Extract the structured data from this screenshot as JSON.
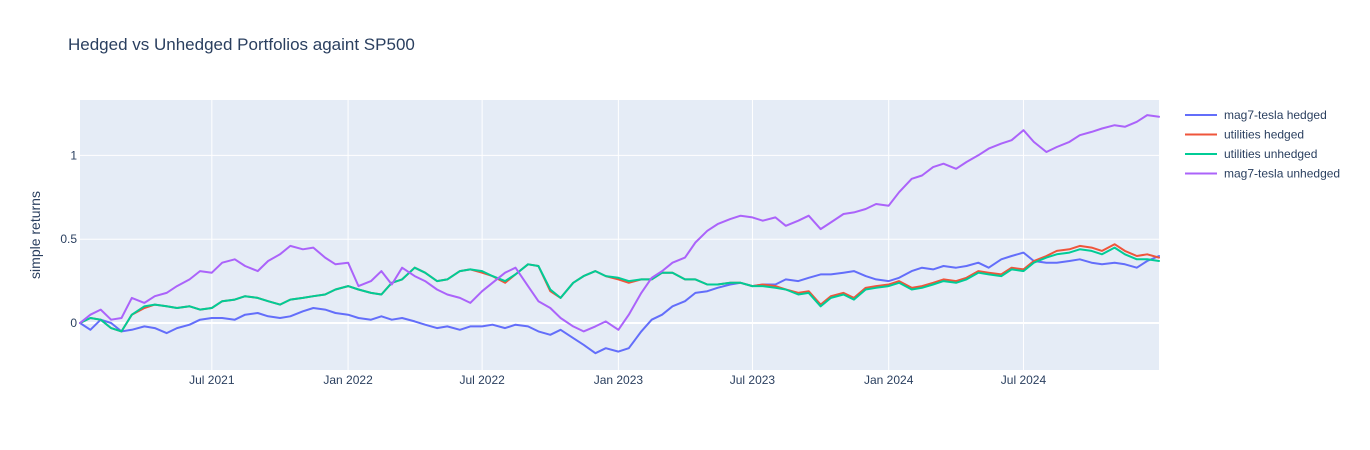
{
  "chart_data": {
    "type": "line",
    "title": "Hedged vs Unhedged Portfolios againt SP500",
    "ylabel": "simple returns",
    "xlabel": "",
    "x_range": [
      "2021-01-04",
      "2024-12-31"
    ],
    "ylim": [
      -0.28,
      1.33
    ],
    "x_ticks": [
      {
        "date": "2021-07-01",
        "label": "Jul 2021"
      },
      {
        "date": "2022-01-01",
        "label": "Jan 2022"
      },
      {
        "date": "2022-07-01",
        "label": "Jul 2022"
      },
      {
        "date": "2023-01-01",
        "label": "Jan 2023"
      },
      {
        "date": "2023-07-01",
        "label": "Jul 2023"
      },
      {
        "date": "2024-01-01",
        "label": "Jan 2024"
      },
      {
        "date": "2024-07-01",
        "label": "Jul 2024"
      }
    ],
    "y_ticks": [
      {
        "value": 0,
        "label": "0"
      },
      {
        "value": 0.5,
        "label": "0.5"
      },
      {
        "value": 1,
        "label": "1"
      }
    ],
    "grid": true,
    "legend_position": "right",
    "series": [
      {
        "name": "mag7-tesla hedged",
        "color": "#636efa",
        "x": [
          "2021-01-04",
          "2021-01-18",
          "2021-02-01",
          "2021-02-15",
          "2021-03-01",
          "2021-03-15",
          "2021-04-01",
          "2021-04-15",
          "2021-05-01",
          "2021-05-15",
          "2021-06-01",
          "2021-06-15",
          "2021-07-01",
          "2021-07-15",
          "2021-08-01",
          "2021-08-15",
          "2021-09-01",
          "2021-09-15",
          "2021-10-01",
          "2021-10-15",
          "2021-11-01",
          "2021-11-15",
          "2021-12-01",
          "2021-12-15",
          "2022-01-01",
          "2022-01-15",
          "2022-02-01",
          "2022-02-15",
          "2022-03-01",
          "2022-03-15",
          "2022-04-01",
          "2022-04-15",
          "2022-05-01",
          "2022-05-15",
          "2022-06-01",
          "2022-06-15",
          "2022-07-01",
          "2022-07-15",
          "2022-08-01",
          "2022-08-15",
          "2022-09-01",
          "2022-09-15",
          "2022-10-01",
          "2022-10-15",
          "2022-11-01",
          "2022-11-15",
          "2022-12-01",
          "2022-12-15",
          "2023-01-01",
          "2023-01-15",
          "2023-02-01",
          "2023-02-15",
          "2023-03-01",
          "2023-03-15",
          "2023-04-01",
          "2023-04-15",
          "2023-05-01",
          "2023-05-15",
          "2023-06-01",
          "2023-06-15",
          "2023-07-01",
          "2023-07-15",
          "2023-08-01",
          "2023-08-15",
          "2023-09-01",
          "2023-09-15",
          "2023-10-01",
          "2023-10-15",
          "2023-11-01",
          "2023-11-15",
          "2023-12-01",
          "2023-12-15",
          "2024-01-01",
          "2024-01-15",
          "2024-02-01",
          "2024-02-15",
          "2024-03-01",
          "2024-03-15",
          "2024-04-01",
          "2024-04-15",
          "2024-05-01",
          "2024-05-15",
          "2024-06-01",
          "2024-06-15",
          "2024-07-01",
          "2024-07-15",
          "2024-08-01",
          "2024-08-15",
          "2024-09-01",
          "2024-09-15",
          "2024-10-01",
          "2024-10-15",
          "2024-11-01",
          "2024-11-15",
          "2024-12-01",
          "2024-12-15",
          "2024-12-31"
        ],
        "y": [
          0.0,
          -0.04,
          0.02,
          0.0,
          -0.05,
          -0.04,
          -0.02,
          -0.03,
          -0.06,
          -0.03,
          -0.01,
          0.02,
          0.03,
          0.03,
          0.02,
          0.05,
          0.06,
          0.04,
          0.03,
          0.04,
          0.07,
          0.09,
          0.08,
          0.06,
          0.05,
          0.03,
          0.02,
          0.04,
          0.02,
          0.03,
          0.01,
          -0.01,
          -0.03,
          -0.02,
          -0.04,
          -0.02,
          -0.02,
          -0.01,
          -0.03,
          -0.01,
          -0.02,
          -0.05,
          -0.07,
          -0.04,
          -0.09,
          -0.13,
          -0.18,
          -0.15,
          -0.17,
          -0.15,
          -0.05,
          0.02,
          0.05,
          0.1,
          0.13,
          0.18,
          0.19,
          0.21,
          0.23,
          0.24,
          0.22,
          0.23,
          0.23,
          0.26,
          0.25,
          0.27,
          0.29,
          0.29,
          0.3,
          0.31,
          0.28,
          0.26,
          0.25,
          0.27,
          0.31,
          0.33,
          0.32,
          0.34,
          0.33,
          0.34,
          0.36,
          0.33,
          0.38,
          0.4,
          0.42,
          0.37,
          0.36,
          0.36,
          0.37,
          0.38,
          0.36,
          0.35,
          0.36,
          0.35,
          0.33,
          0.37,
          0.4
        ]
      },
      {
        "name": "utilities hedged",
        "color": "#ef553b",
        "x": [
          "2021-01-04",
          "2021-01-18",
          "2021-02-01",
          "2021-02-15",
          "2021-03-01",
          "2021-03-15",
          "2021-04-01",
          "2021-04-15",
          "2021-05-01",
          "2021-05-15",
          "2021-06-01",
          "2021-06-15",
          "2021-07-01",
          "2021-07-15",
          "2021-08-01",
          "2021-08-15",
          "2021-09-01",
          "2021-09-15",
          "2021-10-01",
          "2021-10-15",
          "2021-11-01",
          "2021-11-15",
          "2021-12-01",
          "2021-12-15",
          "2022-01-01",
          "2022-01-15",
          "2022-02-01",
          "2022-02-15",
          "2022-03-01",
          "2022-03-15",
          "2022-04-01",
          "2022-04-15",
          "2022-05-01",
          "2022-05-15",
          "2022-06-01",
          "2022-06-15",
          "2022-07-01",
          "2022-07-15",
          "2022-08-01",
          "2022-08-15",
          "2022-09-01",
          "2022-09-15",
          "2022-10-01",
          "2022-10-15",
          "2022-11-01",
          "2022-11-15",
          "2022-12-01",
          "2022-12-15",
          "2023-01-01",
          "2023-01-15",
          "2023-02-01",
          "2023-02-15",
          "2023-03-01",
          "2023-03-15",
          "2023-04-01",
          "2023-04-15",
          "2023-05-01",
          "2023-05-15",
          "2023-06-01",
          "2023-06-15",
          "2023-07-01",
          "2023-07-15",
          "2023-08-01",
          "2023-08-15",
          "2023-09-01",
          "2023-09-15",
          "2023-10-01",
          "2023-10-15",
          "2023-11-01",
          "2023-11-15",
          "2023-12-01",
          "2023-12-15",
          "2024-01-01",
          "2024-01-15",
          "2024-02-01",
          "2024-02-15",
          "2024-03-01",
          "2024-03-15",
          "2024-04-01",
          "2024-04-15",
          "2024-05-01",
          "2024-05-15",
          "2024-06-01",
          "2024-06-15",
          "2024-07-01",
          "2024-07-15",
          "2024-08-01",
          "2024-08-15",
          "2024-09-01",
          "2024-09-15",
          "2024-10-01",
          "2024-10-15",
          "2024-11-01",
          "2024-11-15",
          "2024-12-01",
          "2024-12-15",
          "2024-12-31"
        ],
        "y": [
          0.0,
          0.03,
          0.02,
          -0.03,
          -0.05,
          0.05,
          0.09,
          0.11,
          0.1,
          0.09,
          0.1,
          0.08,
          0.09,
          0.13,
          0.14,
          0.16,
          0.15,
          0.13,
          0.11,
          0.14,
          0.15,
          0.16,
          0.17,
          0.2,
          0.22,
          0.2,
          0.18,
          0.17,
          0.24,
          0.26,
          0.33,
          0.3,
          0.25,
          0.26,
          0.31,
          0.32,
          0.3,
          0.28,
          0.24,
          0.29,
          0.35,
          0.34,
          0.19,
          0.15,
          0.24,
          0.28,
          0.31,
          0.28,
          0.26,
          0.24,
          0.26,
          0.26,
          0.3,
          0.3,
          0.26,
          0.26,
          0.23,
          0.23,
          0.24,
          0.24,
          0.22,
          0.23,
          0.22,
          0.2,
          0.18,
          0.19,
          0.11,
          0.16,
          0.18,
          0.15,
          0.21,
          0.22,
          0.23,
          0.25,
          0.21,
          0.22,
          0.24,
          0.26,
          0.25,
          0.27,
          0.31,
          0.3,
          0.29,
          0.33,
          0.32,
          0.37,
          0.4,
          0.43,
          0.44,
          0.46,
          0.45,
          0.43,
          0.47,
          0.43,
          0.4,
          0.41,
          0.39
        ]
      },
      {
        "name": "utilities unhedged",
        "color": "#00cc96",
        "x": [
          "2021-01-04",
          "2021-01-18",
          "2021-02-01",
          "2021-02-15",
          "2021-03-01",
          "2021-03-15",
          "2021-04-01",
          "2021-04-15",
          "2021-05-01",
          "2021-05-15",
          "2021-06-01",
          "2021-06-15",
          "2021-07-01",
          "2021-07-15",
          "2021-08-01",
          "2021-08-15",
          "2021-09-01",
          "2021-09-15",
          "2021-10-01",
          "2021-10-15",
          "2021-11-01",
          "2021-11-15",
          "2021-12-01",
          "2021-12-15",
          "2022-01-01",
          "2022-01-15",
          "2022-02-01",
          "2022-02-15",
          "2022-03-01",
          "2022-03-15",
          "2022-04-01",
          "2022-04-15",
          "2022-05-01",
          "2022-05-15",
          "2022-06-01",
          "2022-06-15",
          "2022-07-01",
          "2022-07-15",
          "2022-08-01",
          "2022-08-15",
          "2022-09-01",
          "2022-09-15",
          "2022-10-01",
          "2022-10-15",
          "2022-11-01",
          "2022-11-15",
          "2022-12-01",
          "2022-12-15",
          "2023-01-01",
          "2023-01-15",
          "2023-02-01",
          "2023-02-15",
          "2023-03-01",
          "2023-03-15",
          "2023-04-01",
          "2023-04-15",
          "2023-05-01",
          "2023-05-15",
          "2023-06-01",
          "2023-06-15",
          "2023-07-01",
          "2023-07-15",
          "2023-08-01",
          "2023-08-15",
          "2023-09-01",
          "2023-09-15",
          "2023-10-01",
          "2023-10-15",
          "2023-11-01",
          "2023-11-15",
          "2023-12-01",
          "2023-12-15",
          "2024-01-01",
          "2024-01-15",
          "2024-02-01",
          "2024-02-15",
          "2024-03-01",
          "2024-03-15",
          "2024-04-01",
          "2024-04-15",
          "2024-05-01",
          "2024-05-15",
          "2024-06-01",
          "2024-06-15",
          "2024-07-01",
          "2024-07-15",
          "2024-08-01",
          "2024-08-15",
          "2024-09-01",
          "2024-09-15",
          "2024-10-01",
          "2024-10-15",
          "2024-11-01",
          "2024-11-15",
          "2024-12-01",
          "2024-12-15",
          "2024-12-31"
        ],
        "y": [
          0.0,
          0.03,
          0.02,
          -0.03,
          -0.05,
          0.05,
          0.1,
          0.11,
          0.1,
          0.09,
          0.1,
          0.08,
          0.09,
          0.13,
          0.14,
          0.16,
          0.15,
          0.13,
          0.11,
          0.14,
          0.15,
          0.16,
          0.17,
          0.2,
          0.22,
          0.2,
          0.18,
          0.17,
          0.24,
          0.26,
          0.33,
          0.3,
          0.25,
          0.26,
          0.31,
          0.32,
          0.31,
          0.28,
          0.25,
          0.29,
          0.35,
          0.34,
          0.2,
          0.15,
          0.24,
          0.28,
          0.31,
          0.28,
          0.27,
          0.25,
          0.26,
          0.26,
          0.3,
          0.3,
          0.26,
          0.26,
          0.23,
          0.23,
          0.24,
          0.24,
          0.22,
          0.22,
          0.21,
          0.2,
          0.17,
          0.18,
          0.1,
          0.15,
          0.17,
          0.14,
          0.2,
          0.21,
          0.22,
          0.24,
          0.2,
          0.21,
          0.23,
          0.25,
          0.24,
          0.26,
          0.3,
          0.29,
          0.28,
          0.32,
          0.31,
          0.36,
          0.39,
          0.41,
          0.42,
          0.44,
          0.43,
          0.41,
          0.45,
          0.41,
          0.38,
          0.38,
          0.37
        ]
      },
      {
        "name": "mag7-tesla unhedged",
        "color": "#ab63fa",
        "x": [
          "2021-01-04",
          "2021-01-18",
          "2021-02-01",
          "2021-02-15",
          "2021-03-01",
          "2021-03-15",
          "2021-04-01",
          "2021-04-15",
          "2021-05-01",
          "2021-05-15",
          "2021-06-01",
          "2021-06-15",
          "2021-07-01",
          "2021-07-15",
          "2021-08-01",
          "2021-08-15",
          "2021-09-01",
          "2021-09-15",
          "2021-10-01",
          "2021-10-15",
          "2021-11-01",
          "2021-11-15",
          "2021-12-01",
          "2021-12-15",
          "2022-01-01",
          "2022-01-15",
          "2022-02-01",
          "2022-02-15",
          "2022-03-01",
          "2022-03-15",
          "2022-04-01",
          "2022-04-15",
          "2022-05-01",
          "2022-05-15",
          "2022-06-01",
          "2022-06-15",
          "2022-07-01",
          "2022-07-15",
          "2022-08-01",
          "2022-08-15",
          "2022-09-01",
          "2022-09-15",
          "2022-10-01",
          "2022-10-15",
          "2022-11-01",
          "2022-11-15",
          "2022-12-01",
          "2022-12-15",
          "2023-01-01",
          "2023-01-15",
          "2023-02-01",
          "2023-02-15",
          "2023-03-01",
          "2023-03-15",
          "2023-04-01",
          "2023-04-15",
          "2023-05-01",
          "2023-05-15",
          "2023-06-01",
          "2023-06-15",
          "2023-07-01",
          "2023-07-15",
          "2023-08-01",
          "2023-08-15",
          "2023-09-01",
          "2023-09-15",
          "2023-10-01",
          "2023-10-15",
          "2023-11-01",
          "2023-11-15",
          "2023-12-01",
          "2023-12-15",
          "2024-01-01",
          "2024-01-15",
          "2024-02-01",
          "2024-02-15",
          "2024-03-01",
          "2024-03-15",
          "2024-04-01",
          "2024-04-15",
          "2024-05-01",
          "2024-05-15",
          "2024-06-01",
          "2024-06-15",
          "2024-07-01",
          "2024-07-15",
          "2024-08-01",
          "2024-08-15",
          "2024-09-01",
          "2024-09-15",
          "2024-10-01",
          "2024-10-15",
          "2024-11-01",
          "2024-11-15",
          "2024-12-01",
          "2024-12-15",
          "2024-12-31"
        ],
        "y": [
          0.0,
          0.05,
          0.08,
          0.02,
          0.03,
          0.15,
          0.12,
          0.16,
          0.18,
          0.22,
          0.26,
          0.31,
          0.3,
          0.36,
          0.38,
          0.34,
          0.31,
          0.37,
          0.41,
          0.46,
          0.44,
          0.45,
          0.39,
          0.35,
          0.36,
          0.22,
          0.25,
          0.31,
          0.23,
          0.33,
          0.28,
          0.25,
          0.2,
          0.17,
          0.15,
          0.12,
          0.19,
          0.24,
          0.3,
          0.33,
          0.22,
          0.13,
          0.09,
          0.03,
          -0.02,
          -0.05,
          -0.02,
          0.01,
          -0.04,
          0.05,
          0.18,
          0.27,
          0.31,
          0.36,
          0.39,
          0.48,
          0.55,
          0.59,
          0.62,
          0.64,
          0.63,
          0.61,
          0.63,
          0.58,
          0.61,
          0.64,
          0.56,
          0.6,
          0.65,
          0.66,
          0.68,
          0.71,
          0.7,
          0.78,
          0.86,
          0.88,
          0.93,
          0.95,
          0.92,
          0.96,
          1.0,
          1.04,
          1.07,
          1.09,
          1.15,
          1.08,
          1.02,
          1.05,
          1.08,
          1.12,
          1.14,
          1.16,
          1.18,
          1.17,
          1.2,
          1.24,
          1.23
        ]
      }
    ]
  }
}
